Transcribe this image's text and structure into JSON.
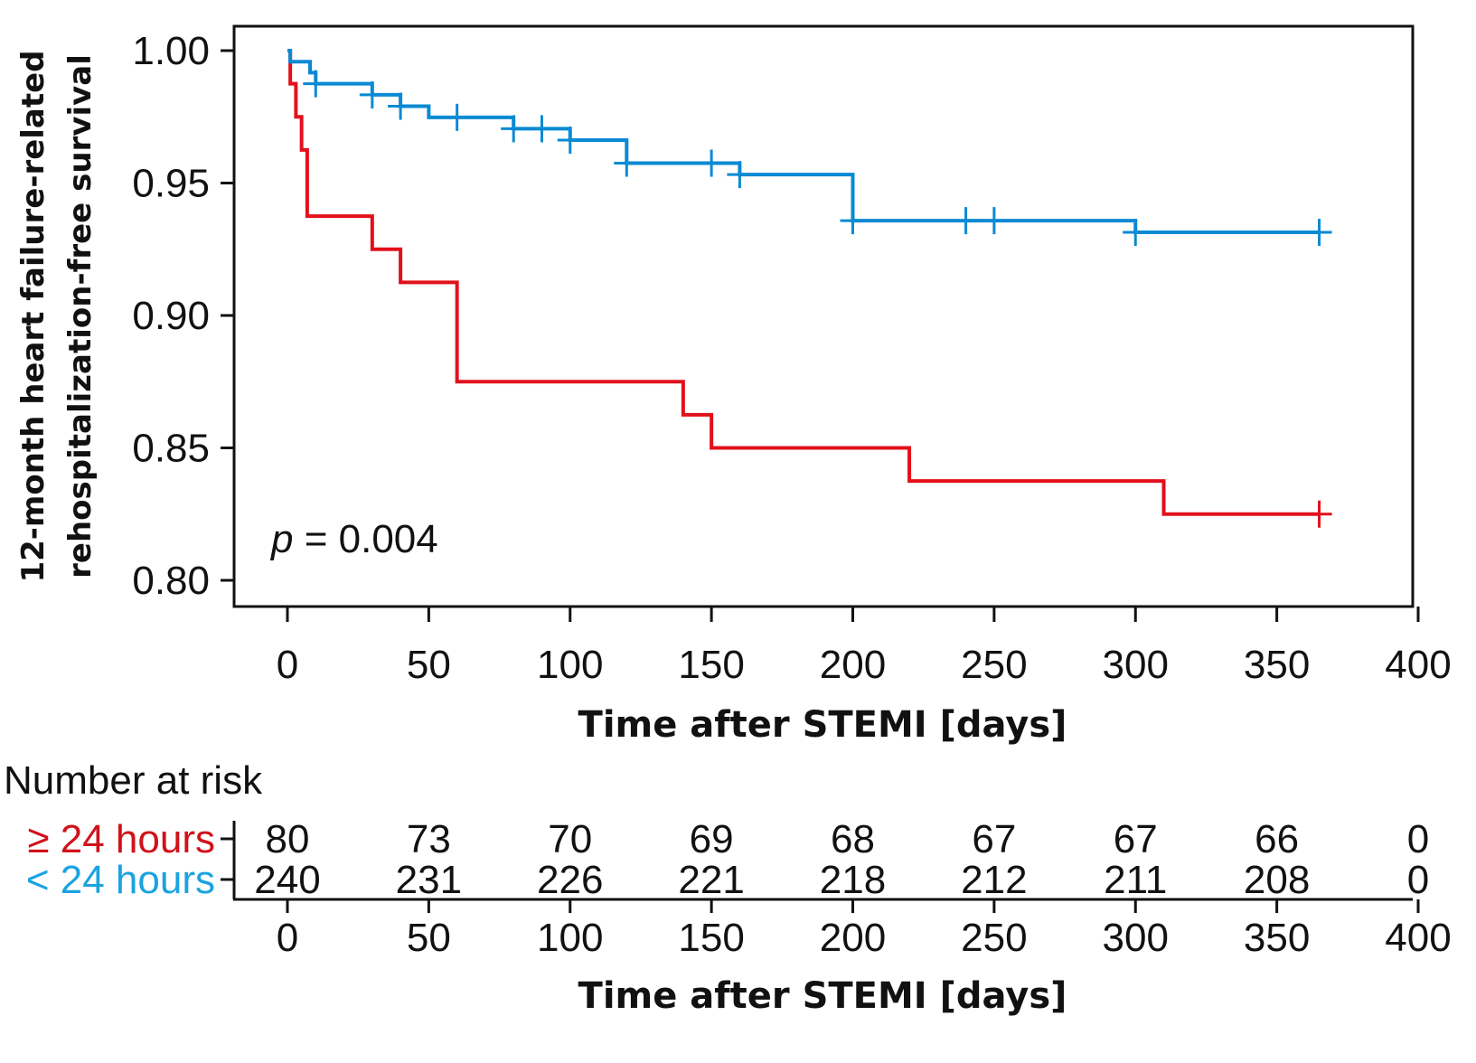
{
  "chart_data": {
    "type": "line",
    "subtype": "kaplan-meier",
    "title": "",
    "ylabel_lines": [
      "12-month heart failure-related",
      "rehospitalization-free survival"
    ],
    "xlabel": "Time after STEMI [days]",
    "xlim": [
      -20,
      420
    ],
    "ylim": [
      0.79,
      1.01
    ],
    "xticks": [
      0,
      50,
      100,
      150,
      200,
      250,
      300,
      350,
      400
    ],
    "xtick_labels": [
      "0",
      "50",
      "100",
      "150",
      "200",
      "250",
      "300",
      "350",
      "400"
    ],
    "yticks": [
      1.0,
      0.95,
      0.9,
      0.85,
      0.8
    ],
    "ytick_labels": [
      "1.00",
      "0.95",
      "0.90",
      "0.85",
      "0.80"
    ],
    "grid": false,
    "annotation": {
      "italic": "p",
      "text": " = 0.004"
    },
    "series": [
      {
        "name": "< 24 hours",
        "color": "#0a8ad4",
        "steps": [
          [
            0,
            1.0
          ],
          [
            1,
            0.9958
          ],
          [
            8,
            0.9917
          ],
          [
            10,
            0.9875
          ],
          [
            30,
            0.9833
          ],
          [
            40,
            0.979
          ],
          [
            50,
            0.9748
          ],
          [
            80,
            0.9705
          ],
          [
            100,
            0.9662
          ],
          [
            120,
            0.9575
          ],
          [
            160,
            0.9532
          ],
          [
            200,
            0.9358
          ],
          [
            300,
            0.9314
          ],
          [
            365,
            0.9314
          ]
        ],
        "censored": [
          [
            10,
            0.9875
          ],
          [
            30,
            0.9833
          ],
          [
            40,
            0.979
          ],
          [
            60,
            0.9748
          ],
          [
            80,
            0.9705
          ],
          [
            90,
            0.9705
          ],
          [
            100,
            0.9662
          ],
          [
            120,
            0.9575
          ],
          [
            150,
            0.9575
          ],
          [
            160,
            0.9532
          ],
          [
            200,
            0.9358
          ],
          [
            240,
            0.9358
          ],
          [
            250,
            0.9358
          ],
          [
            300,
            0.9314
          ],
          [
            365,
            0.9314
          ]
        ]
      },
      {
        "name": "≥ 24 hours",
        "color": "#e2101b",
        "steps": [
          [
            0,
            1.0
          ],
          [
            1,
            0.9875
          ],
          [
            3,
            0.975
          ],
          [
            5,
            0.9625
          ],
          [
            7,
            0.9375
          ],
          [
            30,
            0.925
          ],
          [
            40,
            0.9125
          ],
          [
            60,
            0.875
          ],
          [
            140,
            0.8625
          ],
          [
            150,
            0.85
          ],
          [
            220,
            0.8375
          ],
          [
            310,
            0.825
          ],
          [
            365,
            0.825
          ]
        ],
        "censored": [
          [
            365,
            0.825
          ]
        ]
      }
    ],
    "risk_table": {
      "title": "Number at risk",
      "times": [
        0,
        50,
        100,
        150,
        200,
        250,
        300,
        350,
        400
      ],
      "rows": [
        {
          "label": "≥ 24 hours",
          "color": "#d0121b",
          "values": [
            80,
            73,
            70,
            69,
            68,
            67,
            67,
            66,
            0
          ]
        },
        {
          "label": "< 24 hours",
          "color": "#1aa3e0",
          "values": [
            240,
            231,
            226,
            221,
            218,
            212,
            211,
            208,
            0
          ]
        }
      ],
      "xlabel": "Time after STEMI [days]",
      "xtick_labels": [
        "0",
        "50",
        "100",
        "150",
        "200",
        "250",
        "300",
        "350",
        "400"
      ]
    }
  }
}
